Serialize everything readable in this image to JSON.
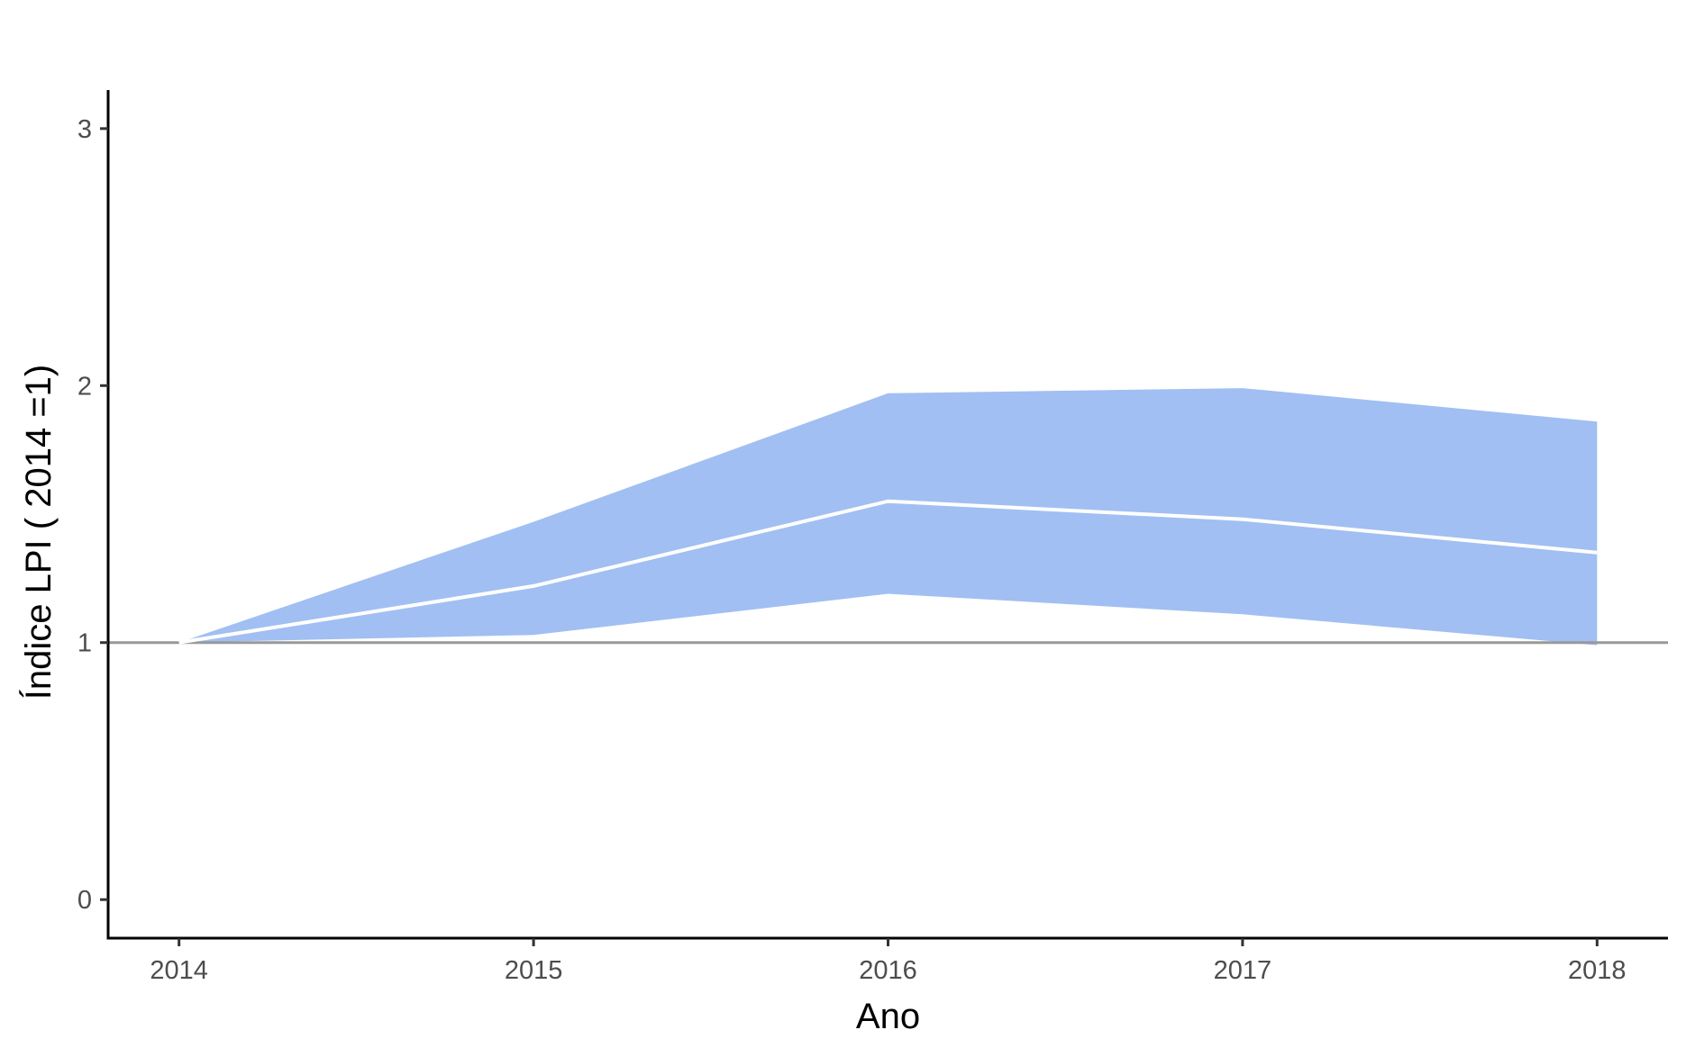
{
  "chart_data": {
    "type": "area",
    "title": "",
    "xlabel": "Ano",
    "ylabel": "Índice LPI ( 2014 =1)",
    "x": [
      2014,
      2015,
      2016,
      2017,
      2018
    ],
    "x_tick_labels": [
      "2014",
      "2015",
      "2016",
      "2017",
      "2018"
    ],
    "y_ticks": [
      0,
      1,
      2,
      3
    ],
    "y_tick_labels": [
      "0",
      "1",
      "2",
      "3"
    ],
    "xlim": [
      2013.8,
      2018.2
    ],
    "ylim": [
      -0.15,
      3.15
    ],
    "grid": false,
    "legend": "none",
    "reference_line": {
      "y": 1,
      "color": "#999999"
    },
    "series": [
      {
        "values": [
          1.0,
          1.22,
          1.55,
          1.48,
          1.35
        ],
        "lower": [
          1.0,
          1.03,
          1.19,
          1.11,
          0.99
        ],
        "upper": [
          1.0,
          1.47,
          1.97,
          1.99,
          1.86
        ],
        "line_color": "#ffffff",
        "band_color": "#a1bff2"
      }
    ]
  }
}
